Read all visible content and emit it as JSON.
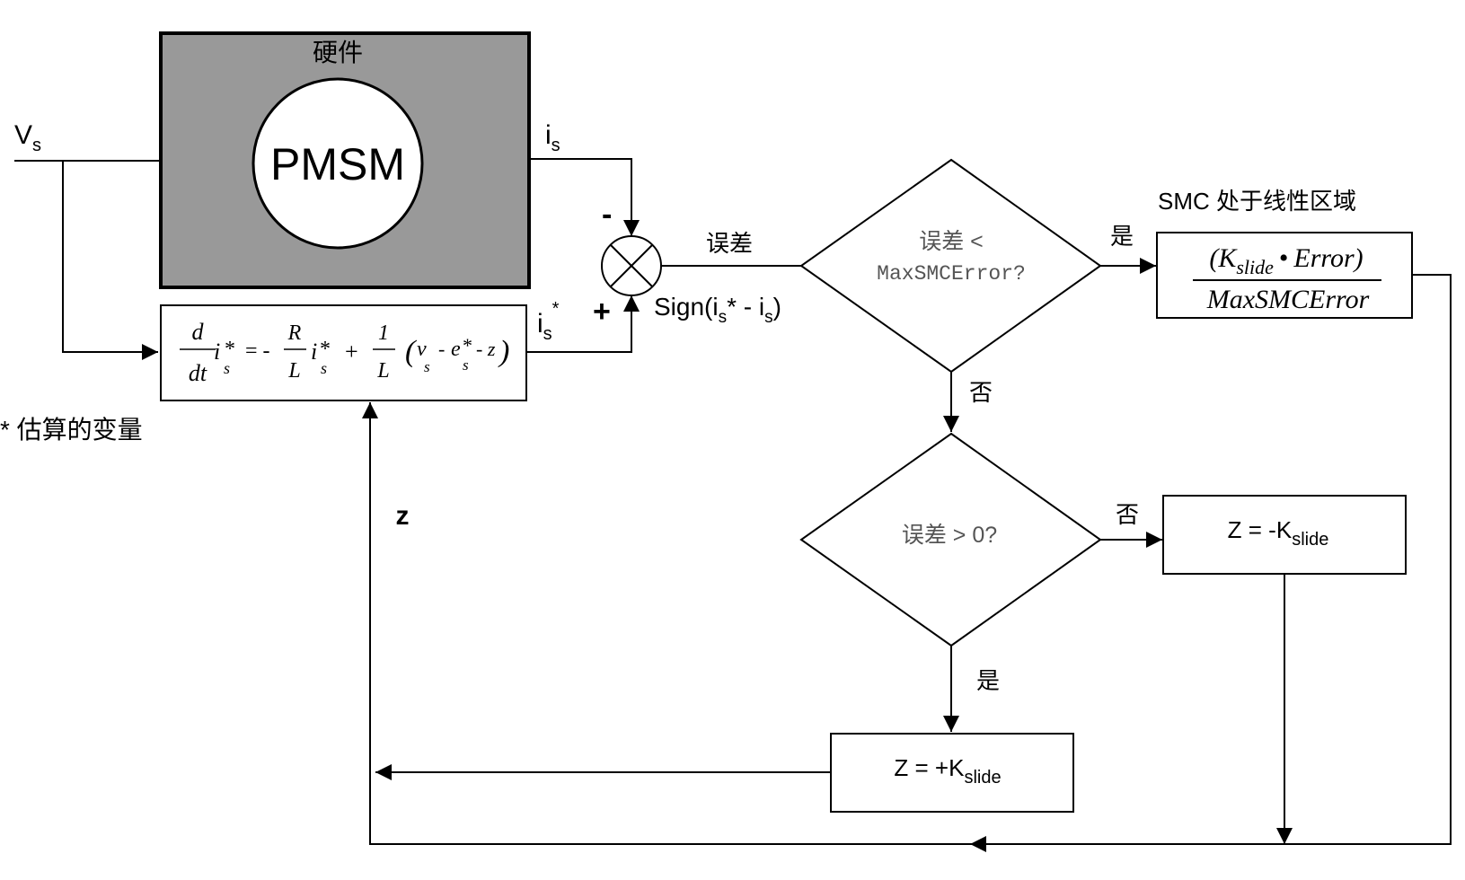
{
  "hardware": {
    "title": "硬件",
    "motor": "PMSM"
  },
  "signals": {
    "vs": "V",
    "vs_sub": "s",
    "is": "i",
    "is_sub": "s",
    "is_est": "i",
    "is_est_sub": "s",
    "is_est_sup": "*",
    "minus": "-",
    "plus": "+",
    "error": "误差",
    "sign": "Sign(i",
    "sign_sub1": "s",
    "sign_mid": "* - i",
    "sign_sub2": "s",
    "sign_end": ")",
    "z": "z"
  },
  "equation": {
    "d": "d",
    "dt": "dt",
    "i": "i",
    "star": "*",
    "s": "s",
    "eq": "= -",
    "R": "R",
    "L": "L",
    "plus": "+",
    "one": "1",
    "lparen": "(",
    "v": "v",
    "minus": "-",
    "e": "e",
    "minus_z": "- z",
    "rparen": ")"
  },
  "note": "* 估算的变量",
  "decision1": {
    "line1": "误差 <",
    "line2": "MaxSMCError?",
    "yes": "是",
    "no": "否"
  },
  "decision2": {
    "line1": "误差 > 0?",
    "yes": "是",
    "no": "否"
  },
  "linear_region": {
    "title": "SMC 处于线性区域",
    "numerator_open": "(K",
    "numerator_sub": "slide",
    "numerator_dot": "•",
    "numerator_rest": "Error)",
    "denominator": "MaxSMCError"
  },
  "z_minus": {
    "prefix": "Z = -K",
    "sub": "slide"
  },
  "z_plus": {
    "prefix": "Z = +K",
    "sub": "slide"
  }
}
